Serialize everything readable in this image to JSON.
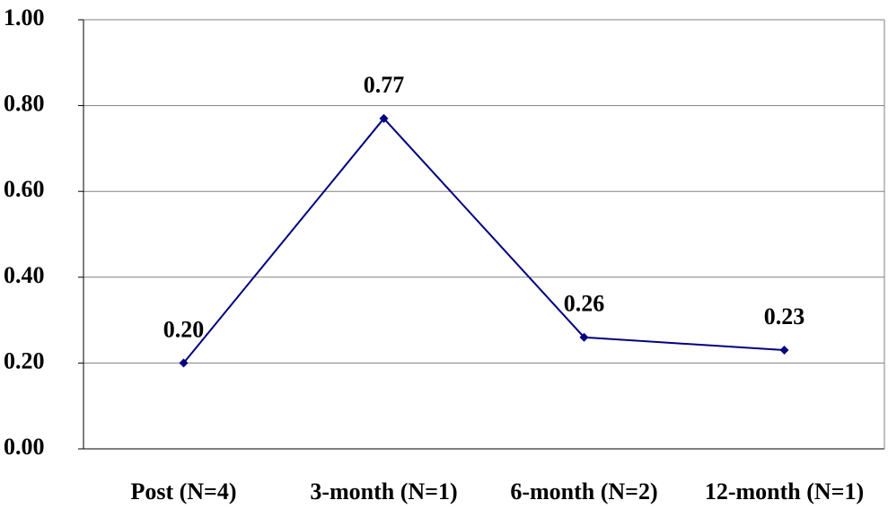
{
  "chart_data": {
    "type": "line",
    "categories": [
      "Post (N=4)",
      "3-month (N=1)",
      "6-month (N=2)",
      "12-month (N=1)"
    ],
    "series": [
      {
        "name": null,
        "color": "#000080",
        "values": [
          0.2,
          0.77,
          0.26,
          0.23
        ],
        "value_labels": [
          "0.20",
          "0.77",
          "0.26",
          "0.23"
        ]
      }
    ],
    "ylim": [
      0,
      1
    ],
    "yticks": [
      {
        "value": 0,
        "label": "0.00"
      },
      {
        "value": 0.2,
        "label": "0.20"
      },
      {
        "value": 0.4,
        "label": "0.40"
      },
      {
        "value": 0.6,
        "label": "0.60"
      },
      {
        "value": 0.8,
        "label": "0.80"
      },
      {
        "value": 1,
        "label": "1.00"
      }
    ],
    "grid": true
  }
}
